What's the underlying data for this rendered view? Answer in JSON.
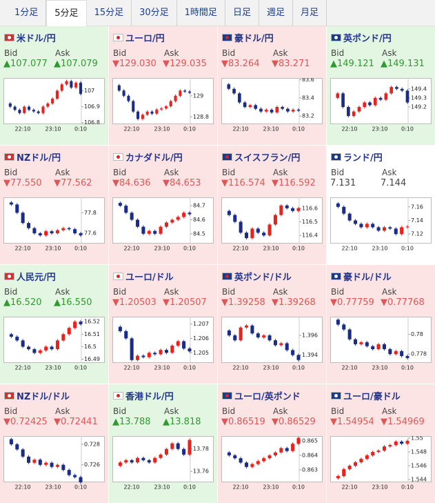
{
  "tabs": [
    "1分足",
    "5分足",
    "15分足",
    "30分足",
    "1時間足",
    "日足",
    "週足",
    "月足"
  ],
  "selected_tab": 1,
  "labels": {
    "bid": "Bid",
    "ask": "Ask"
  },
  "xlabels": [
    "22:10",
    "23:10",
    "0:10"
  ],
  "candle_colors": {
    "up": "#e8231e",
    "down": "#1b2c86"
  },
  "cards": [
    {
      "name": "米ドル/円",
      "trend": "up",
      "arrow": "▲",
      "bid": "107.077",
      "ask": "107.079",
      "ylim": [
        106.79,
        107.08
      ],
      "yticks": [
        107,
        106.9,
        106.8
      ],
      "series": [
        106.92,
        106.9,
        106.88,
        106.86,
        106.9,
        106.88,
        106.87,
        106.86,
        106.9,
        106.92,
        106.95,
        107.0,
        107.04,
        107.06,
        107.02,
        107.05,
        106.98
      ]
    },
    {
      "name": "ユーロ/円",
      "trend": "down",
      "arrow": "▼",
      "bid": "129.030",
      "ask": "129.035",
      "ylim": [
        128.73,
        129.17
      ],
      "yticks": [
        129,
        128.8
      ],
      "series": [
        129.1,
        129.05,
        129.0,
        128.95,
        128.85,
        128.78,
        128.82,
        128.85,
        128.83,
        128.87,
        128.88,
        128.9,
        128.95,
        129.0,
        129.05,
        129.04,
        129.03
      ]
    },
    {
      "name": "豪ドル/円",
      "trend": "down",
      "arrow": "▼",
      "bid": "83.264",
      "ask": "83.271",
      "ylim": [
        83.11,
        83.62
      ],
      "yticks": [
        83.6,
        83.4,
        83.2
      ],
      "series": [
        83.55,
        83.5,
        83.45,
        83.35,
        83.3,
        83.32,
        83.28,
        83.25,
        83.27,
        83.24,
        83.3,
        83.28,
        83.25,
        83.27,
        83.26
      ]
    },
    {
      "name": "英ポンド/円",
      "trend": "up",
      "arrow": "▲",
      "bid": "149.121",
      "ask": "149.131",
      "ylim": [
        149.01,
        149.52
      ],
      "yticks": [
        149.4,
        149.3,
        149.2
      ],
      "series": [
        149.3,
        149.35,
        149.2,
        149.1,
        149.15,
        149.2,
        149.25,
        149.22,
        149.3,
        149.28,
        149.35,
        149.42,
        149.4,
        149.38,
        149.25
      ]
    },
    {
      "name": "NZドル/円",
      "trend": "down",
      "arrow": "▼",
      "bid": "77.550",
      "ask": "77.562",
      "ylim": [
        77.5,
        77.95
      ],
      "yticks": [
        77.8,
        77.6
      ],
      "series": [
        77.9,
        77.88,
        77.8,
        77.7,
        77.65,
        77.6,
        77.58,
        77.62,
        77.6,
        77.63,
        77.65,
        77.64,
        77.6,
        77.58
      ]
    },
    {
      "name": "カナダドル/円",
      "trend": "down",
      "arrow": "▼",
      "bid": "84.636",
      "ask": "84.653",
      "ylim": [
        84.43,
        84.76
      ],
      "yticks": [
        84.7,
        84.6,
        84.5
      ],
      "series": [
        84.72,
        84.7,
        84.65,
        84.6,
        84.55,
        84.5,
        84.52,
        84.5,
        84.55,
        84.58,
        84.6,
        84.62,
        84.65,
        84.64
      ]
    },
    {
      "name": "スイスフラン/円",
      "trend": "down",
      "arrow": "▼",
      "bid": "116.574",
      "ask": "116.592",
      "ylim": [
        116.34,
        116.68
      ],
      "yticks": [
        116.6,
        116.5,
        116.4
      ],
      "series": [
        116.58,
        116.55,
        116.5,
        116.42,
        116.38,
        116.45,
        116.42,
        116.4,
        116.48,
        116.55,
        116.62,
        116.6,
        116.58,
        116.6
      ]
    },
    {
      "name": "ランド/円",
      "trend": "none",
      "bid": "7.131",
      "ask": "7.144",
      "ylim": [
        7.106,
        7.174
      ],
      "yticks": [
        7.16,
        7.14,
        7.12
      ],
      "series": [
        7.165,
        7.16,
        7.15,
        7.14,
        7.135,
        7.13,
        7.135,
        7.13,
        7.125,
        7.13,
        7.128,
        7.12,
        7.13,
        7.131
      ]
    },
    {
      "name": "人民元/円",
      "trend": "up",
      "arrow": "▲",
      "bid": "16.520",
      "ask": "16.550",
      "ylim": [
        16.487,
        16.524
      ],
      "yticks": [
        16.52,
        16.51,
        16.5,
        16.49
      ],
      "series": [
        16.51,
        16.508,
        16.505,
        16.5,
        16.498,
        16.495,
        16.497,
        16.5,
        16.498,
        16.505,
        16.51,
        16.515,
        16.52,
        16.518
      ]
    },
    {
      "name": "ユーロ/ドル",
      "trend": "down",
      "arrow": "▼",
      "bid": "1.20503",
      "ask": "1.20507",
      "ylim": [
        1.2043,
        1.2075
      ],
      "yticks": [
        1.207,
        1.206,
        1.205
      ],
      "series": [
        1.2068,
        1.2065,
        1.206,
        1.2045,
        1.2048,
        1.2047,
        1.205,
        1.2049,
        1.2052,
        1.205,
        1.2055,
        1.2058,
        1.2053,
        1.2051
      ]
    },
    {
      "name": "英ポンド/ドル",
      "trend": "down",
      "arrow": "▼",
      "bid": "1.39258",
      "ask": "1.39268",
      "ylim": [
        1.3932,
        1.3979
      ],
      "yticks": [
        1.396,
        1.394
      ],
      "series": [
        1.3965,
        1.396,
        1.3955,
        1.3968,
        1.397,
        1.3962,
        1.3958,
        1.396,
        1.3955,
        1.395,
        1.3952,
        1.3945,
        1.394,
        1.3935
      ]
    },
    {
      "name": "豪ドル/ドル",
      "trend": "down",
      "arrow": "▼",
      "bid": "0.77759",
      "ask": "0.77768",
      "ylim": [
        0.7771,
        0.7818
      ],
      "yticks": [
        0.78,
        0.778
      ],
      "series": [
        0.7815,
        0.781,
        0.7805,
        0.7795,
        0.779,
        0.7792,
        0.7788,
        0.7785,
        0.779,
        0.7785,
        0.778,
        0.7783,
        0.7778,
        0.7776
      ]
    },
    {
      "name": "NZドル/ドル",
      "trend": "down",
      "arrow": "▼",
      "bid": "0.72425",
      "ask": "0.72441",
      "ylim": [
        0.7243,
        0.7288
      ],
      "yticks": [
        0.728,
        0.726
      ],
      "series": [
        0.7285,
        0.728,
        0.7275,
        0.7268,
        0.7262,
        0.7265,
        0.726,
        0.7262,
        0.7258,
        0.726,
        0.7255,
        0.725,
        0.7248,
        0.7243
      ]
    },
    {
      "name": "香港ドル/円",
      "trend": "up",
      "arrow": "▲",
      "bid": "13.788",
      "ask": "13.818",
      "ylim": [
        13.7503,
        13.7915
      ],
      "yticks": [
        13.78,
        13.76
      ],
      "series": [
        13.765,
        13.768,
        13.77,
        13.768,
        13.772,
        13.77,
        13.768,
        13.772,
        13.775,
        13.78,
        13.785,
        13.78,
        13.775,
        13.788
      ]
    },
    {
      "name": "ユーロ/英ポンド",
      "trend": "down",
      "arrow": "▼",
      "bid": "0.86519",
      "ask": "0.86529",
      "ylim": [
        0.86214,
        0.86533
      ],
      "yticks": [
        0.865,
        0.864,
        0.863
      ],
      "series": [
        0.8642,
        0.864,
        0.8638,
        0.8635,
        0.8632,
        0.8634,
        0.8636,
        0.8638,
        0.864,
        0.8642,
        0.8645,
        0.8643,
        0.8648,
        0.8652
      ]
    },
    {
      "name": "ユーロ/豪ドル",
      "trend": "down",
      "arrow": "▼",
      "bid": "1.54954",
      "ask": "1.54969",
      "ylim": [
        1.5436,
        1.5503
      ],
      "yticks": [
        1.55,
        1.548,
        1.546,
        1.544
      ],
      "series": [
        1.5442,
        1.5445,
        1.5455,
        1.546,
        1.5465,
        1.547,
        1.5475,
        1.548,
        1.5482,
        1.5488,
        1.549,
        1.5495,
        1.5492,
        1.5496
      ]
    }
  ]
}
